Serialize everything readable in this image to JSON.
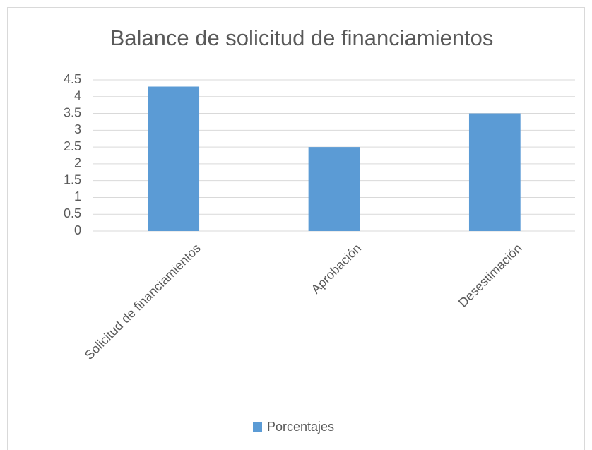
{
  "chart_data": {
    "type": "bar",
    "title": "Balance de solicitud de financiamientos",
    "categories": [
      "Solicitud de financiamientos",
      "Aprobación",
      "Desestimación"
    ],
    "series": [
      {
        "name": "Porcentajes",
        "color": "#5b9bd5",
        "values": [
          4.3,
          2.5,
          3.5
        ]
      }
    ],
    "ylim": [
      0,
      4.5
    ],
    "yticks": [
      0,
      0.5,
      1,
      1.5,
      2,
      2.5,
      3,
      3.5,
      4,
      4.5
    ],
    "grid": true,
    "legend": "bottom"
  }
}
